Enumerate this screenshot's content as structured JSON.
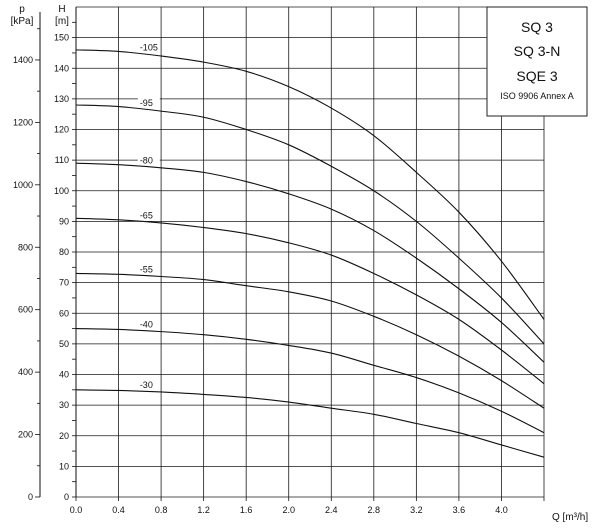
{
  "chart_data": {
    "type": "line",
    "legend": {
      "lines": [
        "SQ 3",
        "SQ 3-N",
        "SQE 3"
      ],
      "standard": "ISO 9906 Annex A",
      "placement": "top-right"
    },
    "x_axis": {
      "label": "Q [m³/h]",
      "range": [
        0,
        4.4
      ],
      "ticks": [
        "0.0",
        "0.4",
        "0.8",
        "1.2",
        "1.6",
        "2.0",
        "2.4",
        "2.8",
        "3.2",
        "3.6",
        "4.0"
      ]
    },
    "y_axis_head": {
      "label_top": "H",
      "label_unit": "[m]",
      "range": [
        0,
        160
      ],
      "ticks": [
        "0",
        "10",
        "20",
        "30",
        "40",
        "50",
        "60",
        "70",
        "80",
        "90",
        "100",
        "110",
        "120",
        "130",
        "140",
        "150"
      ]
    },
    "y_axis_pressure": {
      "label_top": "p",
      "label_unit": "[kPa]",
      "ticks": [
        "0",
        "200",
        "400",
        "600",
        "800",
        "1000",
        "1200",
        "1400"
      ]
    },
    "grid": true,
    "series": [
      {
        "name": "-105",
        "x": [
          0,
          0.4,
          0.8,
          1.2,
          1.6,
          2.0,
          2.4,
          2.8,
          3.2,
          3.6,
          4.0,
          4.4
        ],
        "y": [
          146,
          145.5,
          144,
          142,
          139,
          134,
          127,
          118,
          106,
          93,
          77,
          58
        ]
      },
      {
        "name": "-95",
        "x": [
          0,
          0.4,
          0.8,
          1.2,
          1.6,
          2.0,
          2.4,
          2.8,
          3.2,
          3.6,
          4.0,
          4.4
        ],
        "y": [
          128,
          127.5,
          126,
          124,
          120,
          115,
          108,
          100,
          90,
          78,
          65,
          50
        ]
      },
      {
        "name": "-80",
        "x": [
          0,
          0.4,
          0.8,
          1.2,
          1.6,
          2.0,
          2.4,
          2.8,
          3.2,
          3.6,
          4.0,
          4.4
        ],
        "y": [
          109,
          108.5,
          107.5,
          106,
          103,
          99,
          94,
          87,
          78,
          68,
          57,
          44
        ]
      },
      {
        "name": "-65",
        "x": [
          0,
          0.4,
          0.8,
          1.2,
          1.6,
          2.0,
          2.4,
          2.8,
          3.2,
          3.6,
          4.0,
          4.4
        ],
        "y": [
          91,
          90.5,
          89.5,
          88,
          86,
          83,
          79,
          73,
          66,
          58,
          48,
          37
        ]
      },
      {
        "name": "-55",
        "x": [
          0,
          0.4,
          0.8,
          1.2,
          1.6,
          2.0,
          2.4,
          2.8,
          3.2,
          3.6,
          4.0,
          4.4
        ],
        "y": [
          73,
          72.7,
          72,
          71,
          69,
          67,
          64,
          59,
          53,
          46,
          38,
          29
        ]
      },
      {
        "name": "-40",
        "x": [
          0,
          0.4,
          0.8,
          1.2,
          1.6,
          2.0,
          2.4,
          2.8,
          3.2,
          3.6,
          4.0,
          4.4
        ],
        "y": [
          55,
          54.7,
          54,
          53,
          51.5,
          49.5,
          47,
          43,
          39,
          34,
          28,
          21
        ]
      },
      {
        "name": "-30",
        "x": [
          0,
          0.4,
          0.8,
          1.2,
          1.6,
          2.0,
          2.4,
          2.8,
          3.2,
          3.6,
          4.0,
          4.4
        ],
        "y": [
          35,
          34.8,
          34.3,
          33.5,
          32.5,
          31,
          29,
          27,
          24,
          21,
          17,
          13
        ]
      }
    ]
  }
}
